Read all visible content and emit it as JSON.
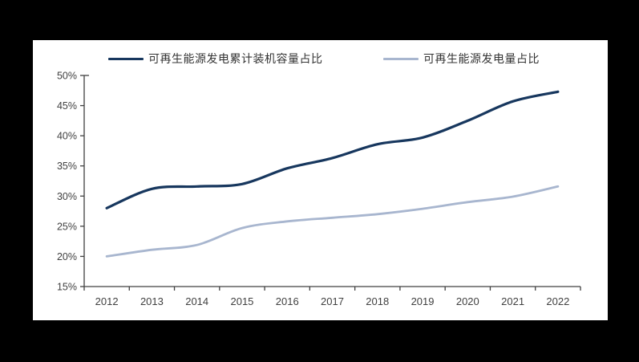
{
  "frame": {
    "background": "#000000",
    "panel_background": "#ffffff"
  },
  "chart_data": {
    "type": "line",
    "title": "",
    "xlabel": "",
    "ylabel": "",
    "x": [
      "2012",
      "2013",
      "2014",
      "2015",
      "2016",
      "2017",
      "2018",
      "2019",
      "2020",
      "2021",
      "2022"
    ],
    "series": [
      {
        "name": "可再生能源发电累计装机容量占比",
        "color": "#17375e",
        "stroke_width": 3.2,
        "values": [
          28.0,
          31.2,
          31.6,
          32.0,
          34.6,
          36.3,
          38.6,
          39.7,
          42.5,
          45.7,
          47.3
        ]
      },
      {
        "name": "可再生能源发电量占比",
        "color": "#a8b6cf",
        "stroke_width": 2.8,
        "values": [
          20.0,
          21.1,
          21.9,
          24.7,
          25.8,
          26.4,
          27.0,
          27.9,
          29.0,
          29.9,
          31.6
        ]
      }
    ],
    "ylim": [
      15,
      50
    ],
    "ytick_step": 5,
    "ytick_labels": [
      "15%",
      "20%",
      "25%",
      "30%",
      "35%",
      "40%",
      "45%",
      "50%"
    ],
    "unit": "%",
    "grid": false,
    "smooth": true,
    "legend_position": "top",
    "axis_color": "#404040",
    "tick_label_color": "#404040"
  }
}
